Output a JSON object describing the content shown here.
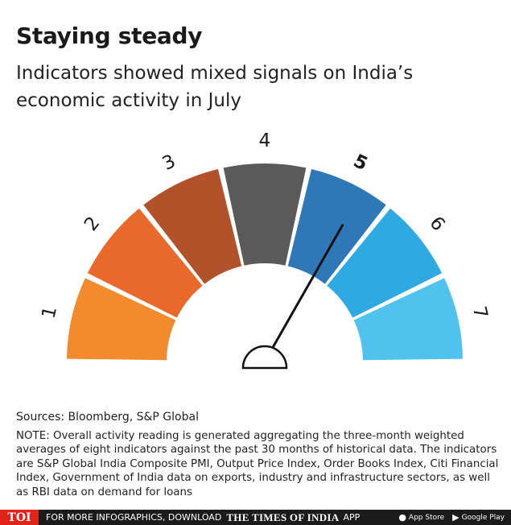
{
  "header": {
    "title": "Staying steady",
    "subtitle": "Indicators showed mixed signals on India’s economic activity in July"
  },
  "chart_data": {
    "type": "gauge",
    "title": "Staying steady",
    "subtitle": "Indicators showed mixed signals on India’s economic activity in July",
    "segments": [
      {
        "label": "1",
        "color": "#f28a2e"
      },
      {
        "label": "2",
        "color": "#e8692a"
      },
      {
        "label": "3",
        "color": "#b2522a"
      },
      {
        "label": "4",
        "color": "#5a5a5a"
      },
      {
        "label": "5",
        "color": "#2e78b7"
      },
      {
        "label": "6",
        "color": "#2eaae3"
      },
      {
        "label": "7",
        "color": "#4fc3ee"
      }
    ],
    "range": [
      1,
      7
    ],
    "reading": 5,
    "highlighted_label": "5"
  },
  "notes": {
    "sources": "Sources: Bloomberg, S&P Global",
    "note": "NOTE: Overall activity reading is generated aggregating the three-month weighted averages of eight indicators against the past 30 months of historical data. The indicators are S&P Global India Composite PMI, Output Price Index, Order Books Index, Citi Financial Index, Government of India data on exports, industry and infrastructure sectors, as well as RBI data on demand for loans"
  },
  "footer": {
    "logo": "TOI",
    "promo": "FOR MORE INFOGRAPHICS, DOWNLOAD",
    "brand": "THE TIMES OF INDIA",
    "app_word": "APP",
    "app_store": "App Store",
    "google_play": "Google Play",
    "app_store_icon": "apple-icon",
    "google_play_icon": "play-icon"
  }
}
